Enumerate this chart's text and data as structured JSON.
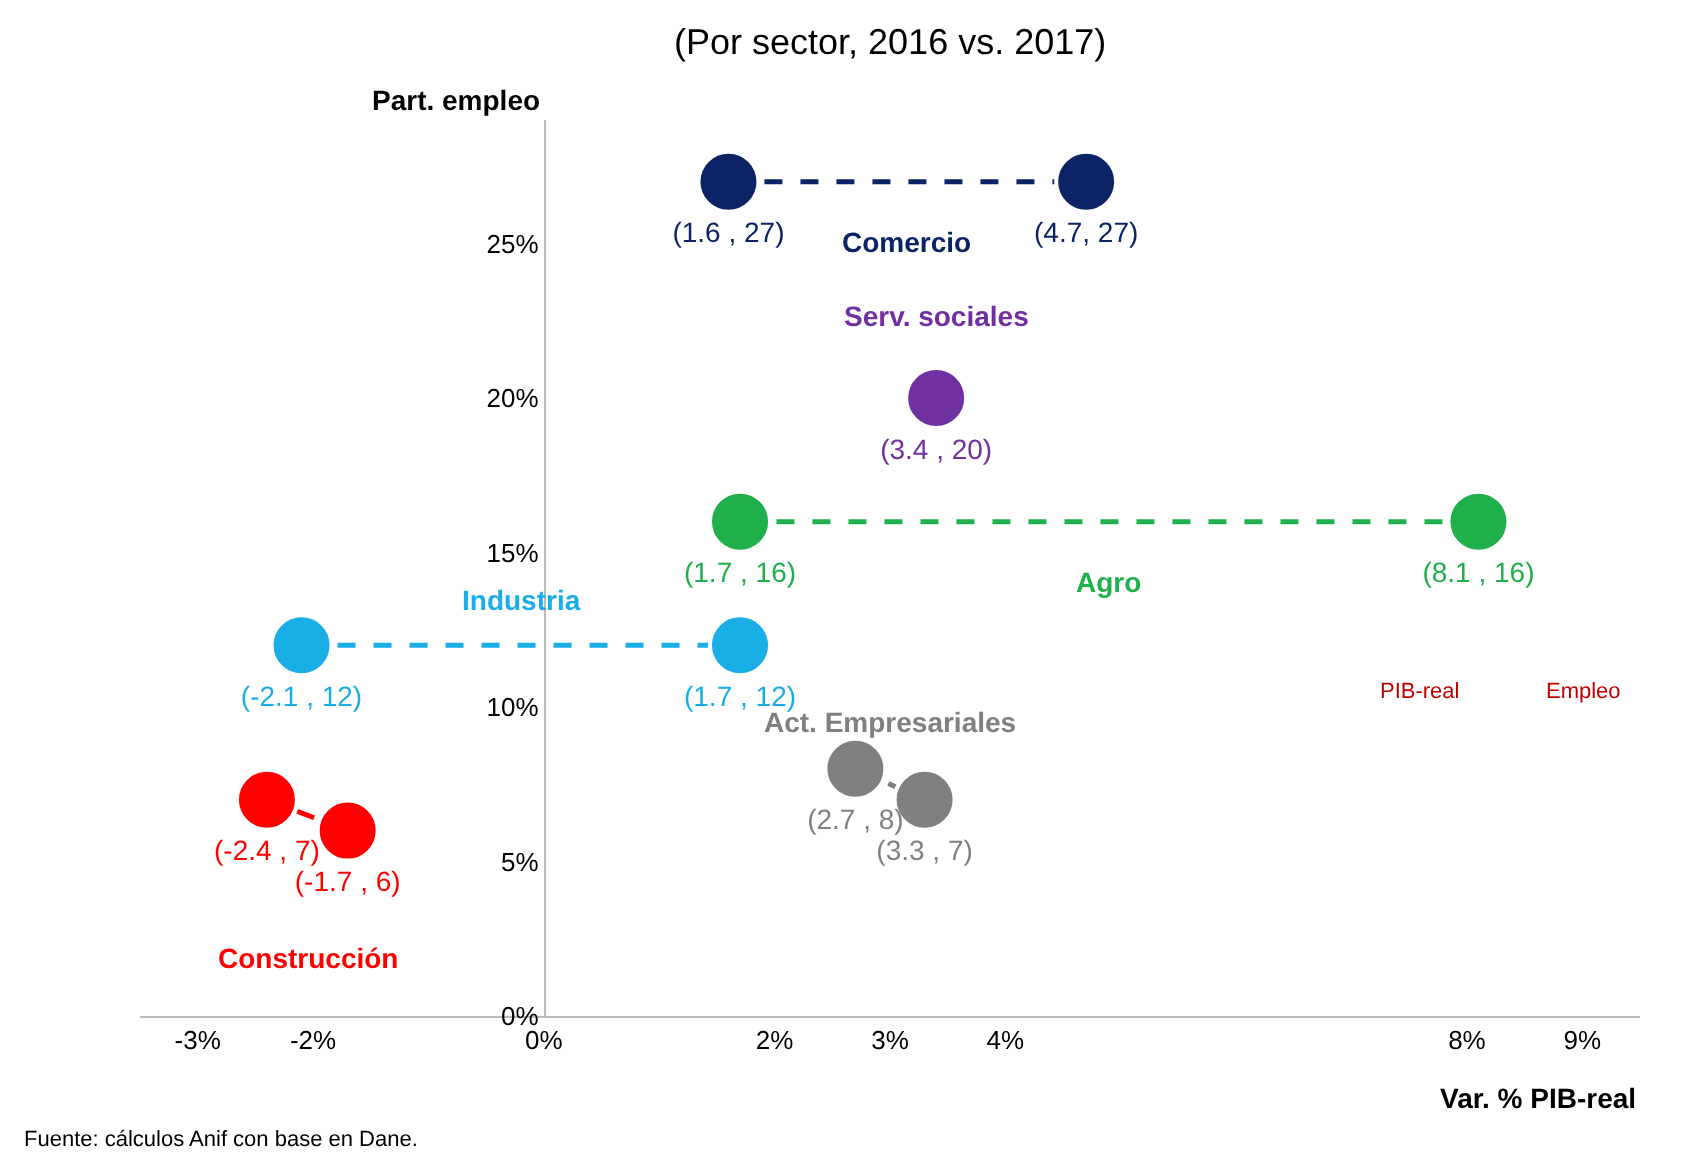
{
  "chart_data": {
    "type": "scatter",
    "subtitle": "(Por sector, 2016 vs. 2017)",
    "xlabel": "Var. % PIB-real",
    "ylabel": "Part. empleo",
    "xlim": [
      -3.5,
      9.5
    ],
    "xticks": [
      {
        "value": -3,
        "label": "-3%"
      },
      {
        "value": -2,
        "label": "-2%"
      },
      {
        "value": 0,
        "label": "0%"
      },
      {
        "value": 2,
        "label": "2%"
      },
      {
        "value": 3,
        "label": "3%"
      },
      {
        "value": 4,
        "label": "4%"
      },
      {
        "value": 8,
        "label": "8%"
      },
      {
        "value": 9,
        "label": "9%"
      }
    ],
    "ylim": [
      0,
      29
    ],
    "yticks": [
      {
        "value": 0,
        "label": "0%"
      },
      {
        "value": 5,
        "label": "5%"
      },
      {
        "value": 10,
        "label": "10%"
      },
      {
        "value": 15,
        "label": "15%"
      },
      {
        "value": 20,
        "label": "20%"
      },
      {
        "value": 25,
        "label": "25%"
      }
    ],
    "legend": false,
    "marker": "circle",
    "line_style": "dashed",
    "series": [
      {
        "name": "Comercio",
        "color": "#0b2265",
        "x": [
          1.6,
          4.7
        ],
        "values": [
          27,
          27
        ],
        "value_labels": [
          "(1.6 , 27)",
          "(4.7, 27)"
        ]
      },
      {
        "name": "Serv. sociales",
        "color": "#7030a0",
        "x": [
          3.4
        ],
        "values": [
          20
        ],
        "value_labels": [
          "(3.4 , 20)"
        ]
      },
      {
        "name": "Agro",
        "color": "#1fb04b",
        "x": [
          8.1,
          1.7
        ],
        "values": [
          16,
          16
        ],
        "value_labels": [
          "(8.1 , 16)",
          "(1.7 , 16)"
        ]
      },
      {
        "name": "Industria",
        "color": "#1aaee6",
        "x": [
          -2.1,
          1.7
        ],
        "values": [
          12,
          12
        ],
        "value_labels": [
          "(-2.1 , 12)",
          "(1.7 , 12)"
        ]
      },
      {
        "name": "Act. Empresariales",
        "color": "#808080",
        "x": [
          2.7,
          3.3
        ],
        "values": [
          8,
          7
        ],
        "value_labels": [
          "(2.7 , 8)",
          "(3.3 , 7)"
        ]
      },
      {
        "name": "Construcción",
        "color": "#ff0000",
        "x": [
          -1.7,
          -2.4
        ],
        "values": [
          6,
          7
        ],
        "value_labels": [
          "(-1.7 , 6)",
          "(-2.4 , 7)"
        ]
      }
    ],
    "annotations": [
      "Fuente: cálculos Anif con base en Dane.",
      "PIB-real",
      "Empleo"
    ]
  }
}
